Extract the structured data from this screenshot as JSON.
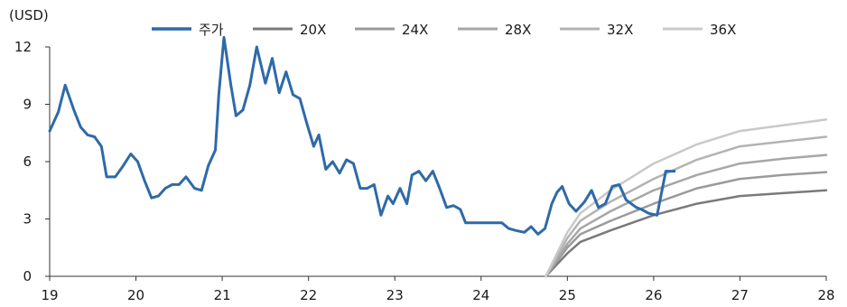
{
  "chart_data": {
    "type": "line",
    "unit_label": "(USD)",
    "ylim": [
      0,
      12
    ],
    "y_ticks": [
      0,
      3,
      6,
      9,
      12
    ],
    "xlim": [
      19,
      28
    ],
    "x_ticks": [
      "19",
      "20",
      "21",
      "22",
      "23",
      "24",
      "25",
      "26",
      "27",
      "28"
    ],
    "grid": false,
    "legend_position": "top",
    "series": [
      {
        "name": "주가",
        "color": "#2e6aa8",
        "x": [
          19.0,
          19.1,
          19.18,
          19.28,
          19.36,
          19.44,
          19.52,
          19.6,
          19.66,
          19.76,
          19.84,
          19.94,
          20.02,
          20.1,
          20.18,
          20.26,
          20.34,
          20.42,
          20.5,
          20.58,
          20.68,
          20.76,
          20.84,
          20.92,
          20.96,
          21.02,
          21.1,
          21.16,
          21.24,
          21.32,
          21.4,
          21.5,
          21.58,
          21.66,
          21.74,
          21.82,
          21.9,
          21.98,
          22.06,
          22.12,
          22.2,
          22.28,
          22.36,
          22.44,
          22.52,
          22.6,
          22.68,
          22.76,
          22.84,
          22.92,
          22.98,
          23.06,
          23.14,
          23.2,
          23.28,
          23.36,
          23.44,
          23.52,
          23.6,
          23.68,
          23.76,
          23.82,
          23.92,
          24.0,
          24.08,
          24.16,
          24.24,
          24.32,
          24.4,
          24.5,
          24.58,
          24.66,
          24.74,
          24.82,
          24.88,
          24.94,
          25.02,
          25.1,
          25.2,
          25.28,
          25.36,
          25.44,
          25.52,
          25.6,
          25.68,
          25.74,
          25.8,
          25.86,
          25.94,
          26.04,
          26.14,
          26.2,
          26.24
        ],
        "y": [
          7.6,
          8.6,
          10.0,
          8.7,
          7.8,
          7.4,
          7.3,
          6.8,
          5.2,
          5.2,
          5.7,
          6.4,
          6.0,
          5.0,
          4.1,
          4.2,
          4.6,
          4.8,
          4.8,
          5.2,
          4.6,
          4.5,
          5.8,
          6.6,
          9.5,
          12.5,
          10.0,
          8.4,
          8.7,
          10.0,
          12.0,
          10.1,
          11.4,
          9.6,
          10.7,
          9.5,
          9.3,
          8.0,
          6.8,
          7.4,
          5.6,
          6.0,
          5.4,
          6.1,
          5.9,
          4.6,
          4.6,
          4.8,
          3.2,
          4.2,
          3.8,
          4.6,
          3.8,
          5.3,
          5.5,
          5.0,
          5.5,
          4.6,
          3.6,
          3.7,
          3.5,
          2.8,
          2.8,
          2.8,
          2.8,
          2.8,
          2.8,
          2.5,
          2.4,
          2.3,
          2.6,
          2.2,
          2.5,
          3.8,
          4.4,
          4.7,
          3.8,
          3.4,
          3.9,
          4.5,
          3.6,
          3.8,
          4.7,
          4.8,
          4.0,
          3.8,
          3.6,
          3.5,
          3.3,
          3.2,
          5.5,
          5.5,
          5.5
        ]
      },
      {
        "name": "20X",
        "color": "#7a7a7a",
        "x": [
          24.75,
          25.0,
          25.15,
          25.5,
          26.0,
          26.5,
          27.0,
          27.5,
          28.0
        ],
        "y": [
          0.0,
          1.2,
          1.8,
          2.4,
          3.2,
          3.8,
          4.2,
          4.35,
          4.5
        ]
      },
      {
        "name": "24X",
        "color": "#9a9a9a",
        "x": [
          24.75,
          25.0,
          25.15,
          25.5,
          26.0,
          26.5,
          27.0,
          27.5,
          28.0
        ],
        "y": [
          0.0,
          1.5,
          2.2,
          2.9,
          3.8,
          4.6,
          5.1,
          5.3,
          5.45
        ]
      },
      {
        "name": "28X",
        "color": "#a6a6a6",
        "x": [
          24.75,
          25.0,
          25.15,
          25.5,
          26.0,
          26.5,
          27.0,
          27.5,
          28.0
        ],
        "y": [
          0.0,
          1.7,
          2.5,
          3.4,
          4.5,
          5.3,
          5.9,
          6.15,
          6.35
        ]
      },
      {
        "name": "32X",
        "color": "#b3b3b3",
        "x": [
          24.75,
          25.0,
          25.15,
          25.5,
          26.0,
          26.5,
          27.0,
          27.5,
          28.0
        ],
        "y": [
          0.0,
          2.0,
          2.9,
          3.9,
          5.1,
          6.1,
          6.8,
          7.05,
          7.3
        ]
      },
      {
        "name": "36X",
        "color": "#c9c9c9",
        "x": [
          24.75,
          25.0,
          25.15,
          25.5,
          26.0,
          26.5,
          27.0,
          27.5,
          28.0
        ],
        "y": [
          0.0,
          2.3,
          3.3,
          4.5,
          5.9,
          6.9,
          7.6,
          7.9,
          8.2
        ]
      }
    ]
  }
}
